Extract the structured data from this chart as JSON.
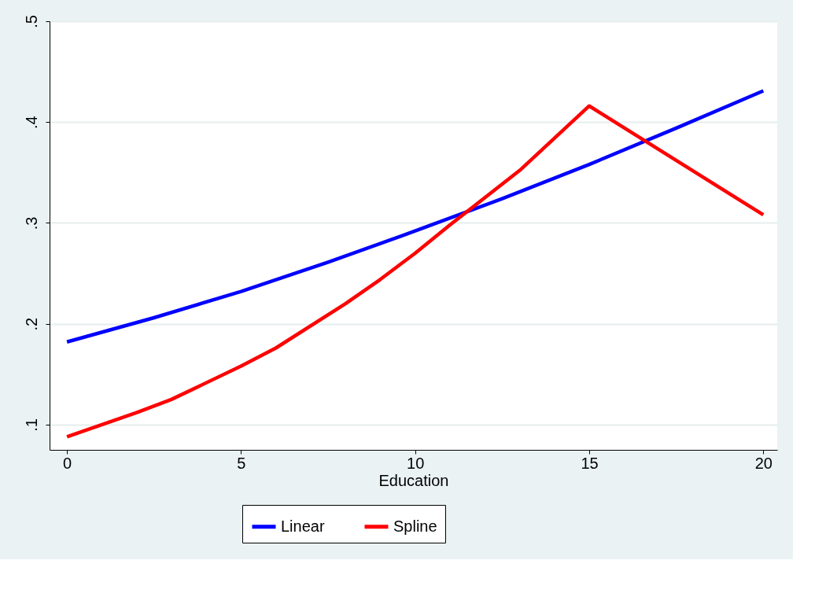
{
  "chart_data": {
    "type": "line",
    "xlabel": "Education",
    "xlim": [
      -0.5,
      20.4
    ],
    "xticks": [
      0,
      5,
      10,
      15,
      20
    ],
    "ylim": [
      0.075,
      0.5
    ],
    "yticks": [
      {
        "value": 0.1,
        "label": ".1"
      },
      {
        "value": 0.2,
        "label": ".2"
      },
      {
        "value": 0.3,
        "label": ".3"
      },
      {
        "value": 0.4,
        "label": ".4"
      },
      {
        "value": 0.5,
        "label": ".5"
      }
    ],
    "grid": "y",
    "legend": "bottom",
    "marker": "none",
    "line_style": "solid",
    "series": [
      {
        "name": "Linear",
        "color": "#0000ff",
        "x": [
          0,
          2.5,
          5,
          7.5,
          10,
          12.5,
          15,
          17.5,
          20
        ],
        "values": [
          0.182,
          0.206,
          0.232,
          0.261,
          0.292,
          0.324,
          0.358,
          0.394,
          0.431
        ]
      },
      {
        "name": "Spline",
        "color": "#ff0000",
        "x": [
          0,
          2,
          3,
          5,
          6,
          8,
          9,
          10,
          11,
          13,
          15,
          20
        ],
        "values": [
          0.088,
          0.112,
          0.125,
          0.158,
          0.176,
          0.22,
          0.244,
          0.27,
          0.298,
          0.352,
          0.416,
          0.308
        ]
      }
    ]
  }
}
